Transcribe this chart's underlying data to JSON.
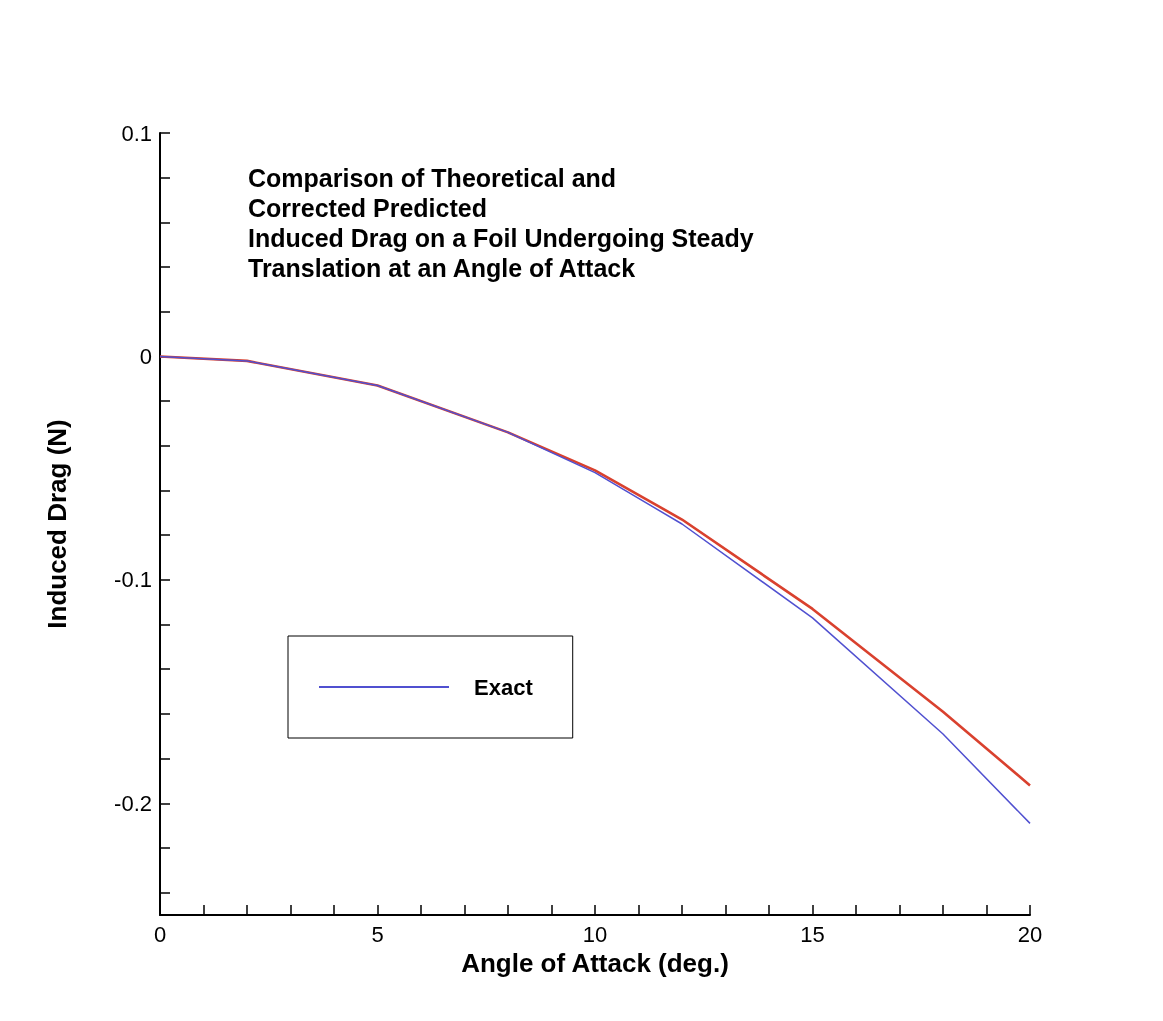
{
  "chart_data": {
    "type": "line",
    "title": "Comparison of Theoretical and\nCorrected Predicted\nInduced Drag on a Foil Undergoing Steady\nTranslation at an Angle of Attack",
    "xlabel": "Angle of Attack (deg.)",
    "ylabel": "Induced Drag (N)",
    "x": [
      0,
      2,
      5,
      8,
      10,
      12,
      15,
      18,
      20
    ],
    "series": [
      {
        "color": "#d9412e",
        "values": [
          0,
          -0.002,
          -0.013,
          -0.034,
          -0.051,
          -0.073,
          -0.113,
          -0.159,
          -0.192
        ]
      },
      {
        "name": "Exact",
        "color": "#5050d0",
        "values": [
          0,
          -0.002,
          -0.013,
          -0.034,
          -0.052,
          -0.075,
          -0.117,
          -0.169,
          -0.209
        ]
      }
    ],
    "xlim": [
      0,
      20
    ],
    "xticks": [
      0,
      {
        "value": 1,
        "label": null
      },
      {
        "value": 2,
        "label": null
      },
      {
        "value": 3,
        "label": null
      },
      {
        "value": 4,
        "label": null
      },
      5,
      {
        "value": 6,
        "label": null
      },
      {
        "value": 7,
        "label": null
      },
      {
        "value": 8,
        "label": null
      },
      {
        "value": 9,
        "label": null
      },
      10,
      {
        "value": 11,
        "label": null
      },
      {
        "value": 12,
        "label": null
      },
      {
        "value": 13,
        "label": null
      },
      {
        "value": 14,
        "label": null
      },
      15,
      {
        "value": 16,
        "label": null
      },
      {
        "value": 17,
        "label": null
      },
      {
        "value": 18,
        "label": null
      },
      {
        "value": 19,
        "label": null
      },
      20
    ],
    "ylim": [
      -0.25,
      0.1
    ],
    "yticks": [
      {
        "value": -0.24,
        "label": null
      },
      {
        "value": -0.22,
        "label": null
      },
      -0.2,
      {
        "value": -0.18,
        "label": null
      },
      {
        "value": -0.16,
        "label": null
      },
      {
        "value": -0.14,
        "label": null
      },
      {
        "value": -0.12,
        "label": null
      },
      -0.1,
      {
        "value": -0.08,
        "label": null
      },
      {
        "value": -0.06,
        "label": null
      },
      {
        "value": -0.04,
        "label": null
      },
      {
        "value": -0.02,
        "label": null
      },
      0,
      {
        "value": 0.02,
        "label": null
      },
      {
        "value": 0.04,
        "label": null
      },
      {
        "value": 0.06,
        "label": null
      },
      {
        "value": 0.08,
        "label": null
      },
      0.1
    ],
    "grid": false,
    "legend": "bottom left",
    "marker": "none",
    "line_style": "solid"
  }
}
